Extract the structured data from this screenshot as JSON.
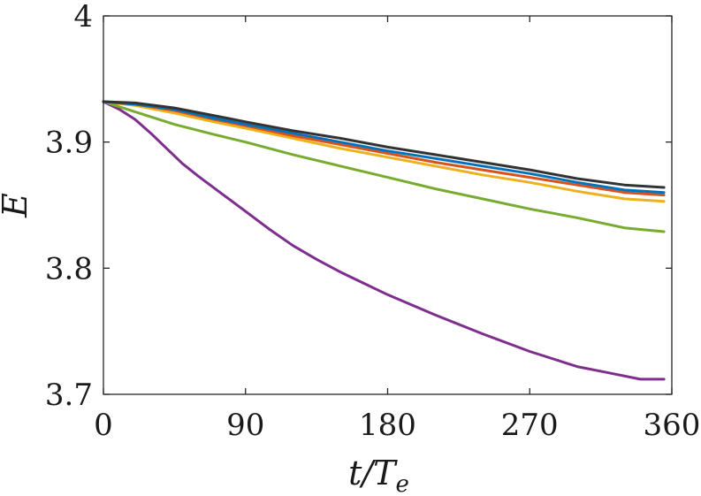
{
  "chart_data": {
    "type": "line",
    "title": "",
    "xlabel": "t/T",
    "xlabel_sub": "e",
    "ylabel": "E",
    "xlim": [
      0,
      360
    ],
    "ylim": [
      3.7,
      4.0
    ],
    "xticks": [
      0,
      90,
      180,
      270,
      360
    ],
    "xtick_labels": [
      "0",
      "90",
      "180",
      "270",
      "360"
    ],
    "yticks": [
      3.7,
      3.8,
      3.9,
      4.0
    ],
    "ytick_labels": [
      "3.7",
      "3.8",
      "3.9",
      "4"
    ],
    "grid": false,
    "legend": "none",
    "series": [
      {
        "color": "#7E2F8E",
        "x": [
          0,
          10,
          20,
          30,
          40,
          50,
          60,
          75,
          90,
          105,
          120,
          135,
          150,
          165,
          180,
          210,
          240,
          270,
          300,
          320,
          340,
          355
        ],
        "y": [
          3.932,
          3.926,
          3.918,
          3.907,
          3.895,
          3.883,
          3.873,
          3.859,
          3.845,
          3.831,
          3.818,
          3.807,
          3.797,
          3.788,
          3.779,
          3.763,
          3.748,
          3.734,
          3.722,
          3.717,
          3.712,
          3.712
        ]
      },
      {
        "color": "#77AC30",
        "x": [
          0,
          20,
          45,
          70,
          90,
          120,
          150,
          180,
          210,
          240,
          270,
          300,
          330,
          355
        ],
        "y": [
          3.932,
          3.924,
          3.914,
          3.906,
          3.9,
          3.89,
          3.881,
          3.872,
          3.863,
          3.855,
          3.847,
          3.84,
          3.832,
          3.829
        ]
      },
      {
        "color": "#EDB120",
        "x": [
          0,
          20,
          45,
          70,
          90,
          120,
          150,
          180,
          210,
          240,
          270,
          300,
          330,
          355
        ],
        "y": [
          3.932,
          3.929,
          3.923,
          3.916,
          3.911,
          3.903,
          3.895,
          3.888,
          3.881,
          3.874,
          3.868,
          3.861,
          3.855,
          3.853
        ]
      },
      {
        "color": "#D95319",
        "x": [
          0,
          20,
          45,
          70,
          90,
          120,
          150,
          180,
          210,
          240,
          270,
          300,
          330,
          355
        ],
        "y": [
          3.932,
          3.93,
          3.925,
          3.918,
          3.913,
          3.905,
          3.898,
          3.891,
          3.884,
          3.878,
          3.872,
          3.866,
          3.86,
          3.858
        ]
      },
      {
        "color": "#0072BD",
        "x": [
          0,
          20,
          45,
          70,
          90,
          120,
          150,
          180,
          210,
          240,
          270,
          300,
          330,
          355
        ],
        "y": [
          3.932,
          3.93,
          3.926,
          3.919,
          3.914,
          3.907,
          3.9,
          3.893,
          3.887,
          3.881,
          3.875,
          3.868,
          3.862,
          3.86
        ]
      },
      {
        "color": "#333333",
        "x": [
          0,
          20,
          45,
          70,
          90,
          120,
          150,
          180,
          210,
          240,
          270,
          300,
          330,
          355
        ],
        "y": [
          3.932,
          3.931,
          3.927,
          3.921,
          3.916,
          3.909,
          3.903,
          3.896,
          3.89,
          3.884,
          3.878,
          3.871,
          3.866,
          3.864
        ]
      }
    ]
  }
}
